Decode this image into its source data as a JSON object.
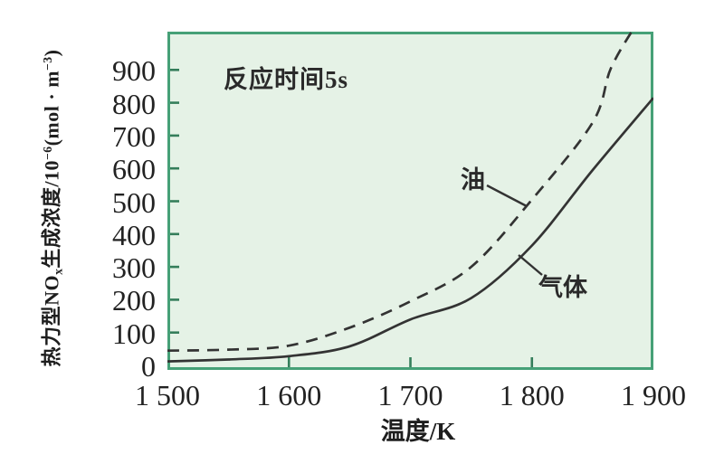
{
  "figure": {
    "background": "#ffffff",
    "plot_background": "#e5f2e6",
    "border_color": "#46a077",
    "tick_color": "#357e5b",
    "curve_color": "#333333",
    "text_color": "#222222"
  },
  "annotation": {
    "reaction_time": "反应时间5s"
  },
  "chart_data": {
    "type": "line",
    "title": "",
    "annotation": "反应时间5s",
    "xlabel": "温度/K",
    "ylabel": "热力型NOx生成浓度/10⁻⁶(mol·m⁻³)",
    "ylabel_parts": [
      {
        "t": "热力型NO",
        "s": "n"
      },
      {
        "t": "x",
        "s": "sub"
      },
      {
        "t": "生成浓度/10",
        "s": "n"
      },
      {
        "t": "−6",
        "s": "sup"
      },
      {
        "t": "(mol · m",
        "s": "n"
      },
      {
        "t": "−3",
        "s": "sup"
      },
      {
        "t": ")",
        "s": "n"
      }
    ],
    "xlim": [
      1500,
      1900
    ],
    "ylim": [
      0,
      1020
    ],
    "grid": false,
    "legend_position": "inline-annotations",
    "x_ticks": [
      {
        "v": 1500,
        "label": "1 500"
      },
      {
        "v": 1600,
        "label": "1 600"
      },
      {
        "v": 1700,
        "label": "1 700"
      },
      {
        "v": 1800,
        "label": "1 800"
      },
      {
        "v": 1900,
        "label": "1 900"
      }
    ],
    "y_ticks": [
      {
        "v": 0,
        "label": "0"
      },
      {
        "v": 100,
        "label": "100"
      },
      {
        "v": 200,
        "label": "200"
      },
      {
        "v": 300,
        "label": "300"
      },
      {
        "v": 400,
        "label": "400"
      },
      {
        "v": 500,
        "label": "500"
      },
      {
        "v": 600,
        "label": "600"
      },
      {
        "v": 700,
        "label": "700"
      },
      {
        "v": 800,
        "label": "800"
      },
      {
        "v": 900,
        "label": "900"
      }
    ],
    "series": [
      {
        "name": "油",
        "fuel": "oil",
        "line_style": "dashed",
        "points": [
          [
            1500,
            45
          ],
          [
            1550,
            48
          ],
          [
            1600,
            60
          ],
          [
            1650,
            115
          ],
          [
            1700,
            195
          ],
          [
            1750,
            300
          ],
          [
            1800,
            505
          ],
          [
            1850,
            740
          ],
          [
            1865,
            905
          ],
          [
            1886,
            1040
          ]
        ]
      },
      {
        "name": "气体",
        "fuel": "gas",
        "line_style": "solid",
        "points": [
          [
            1500,
            12
          ],
          [
            1550,
            18
          ],
          [
            1600,
            28
          ],
          [
            1650,
            58
          ],
          [
            1700,
            140
          ],
          [
            1750,
            205
          ],
          [
            1800,
            365
          ],
          [
            1850,
            595
          ],
          [
            1900,
            815
          ]
        ]
      }
    ]
  }
}
